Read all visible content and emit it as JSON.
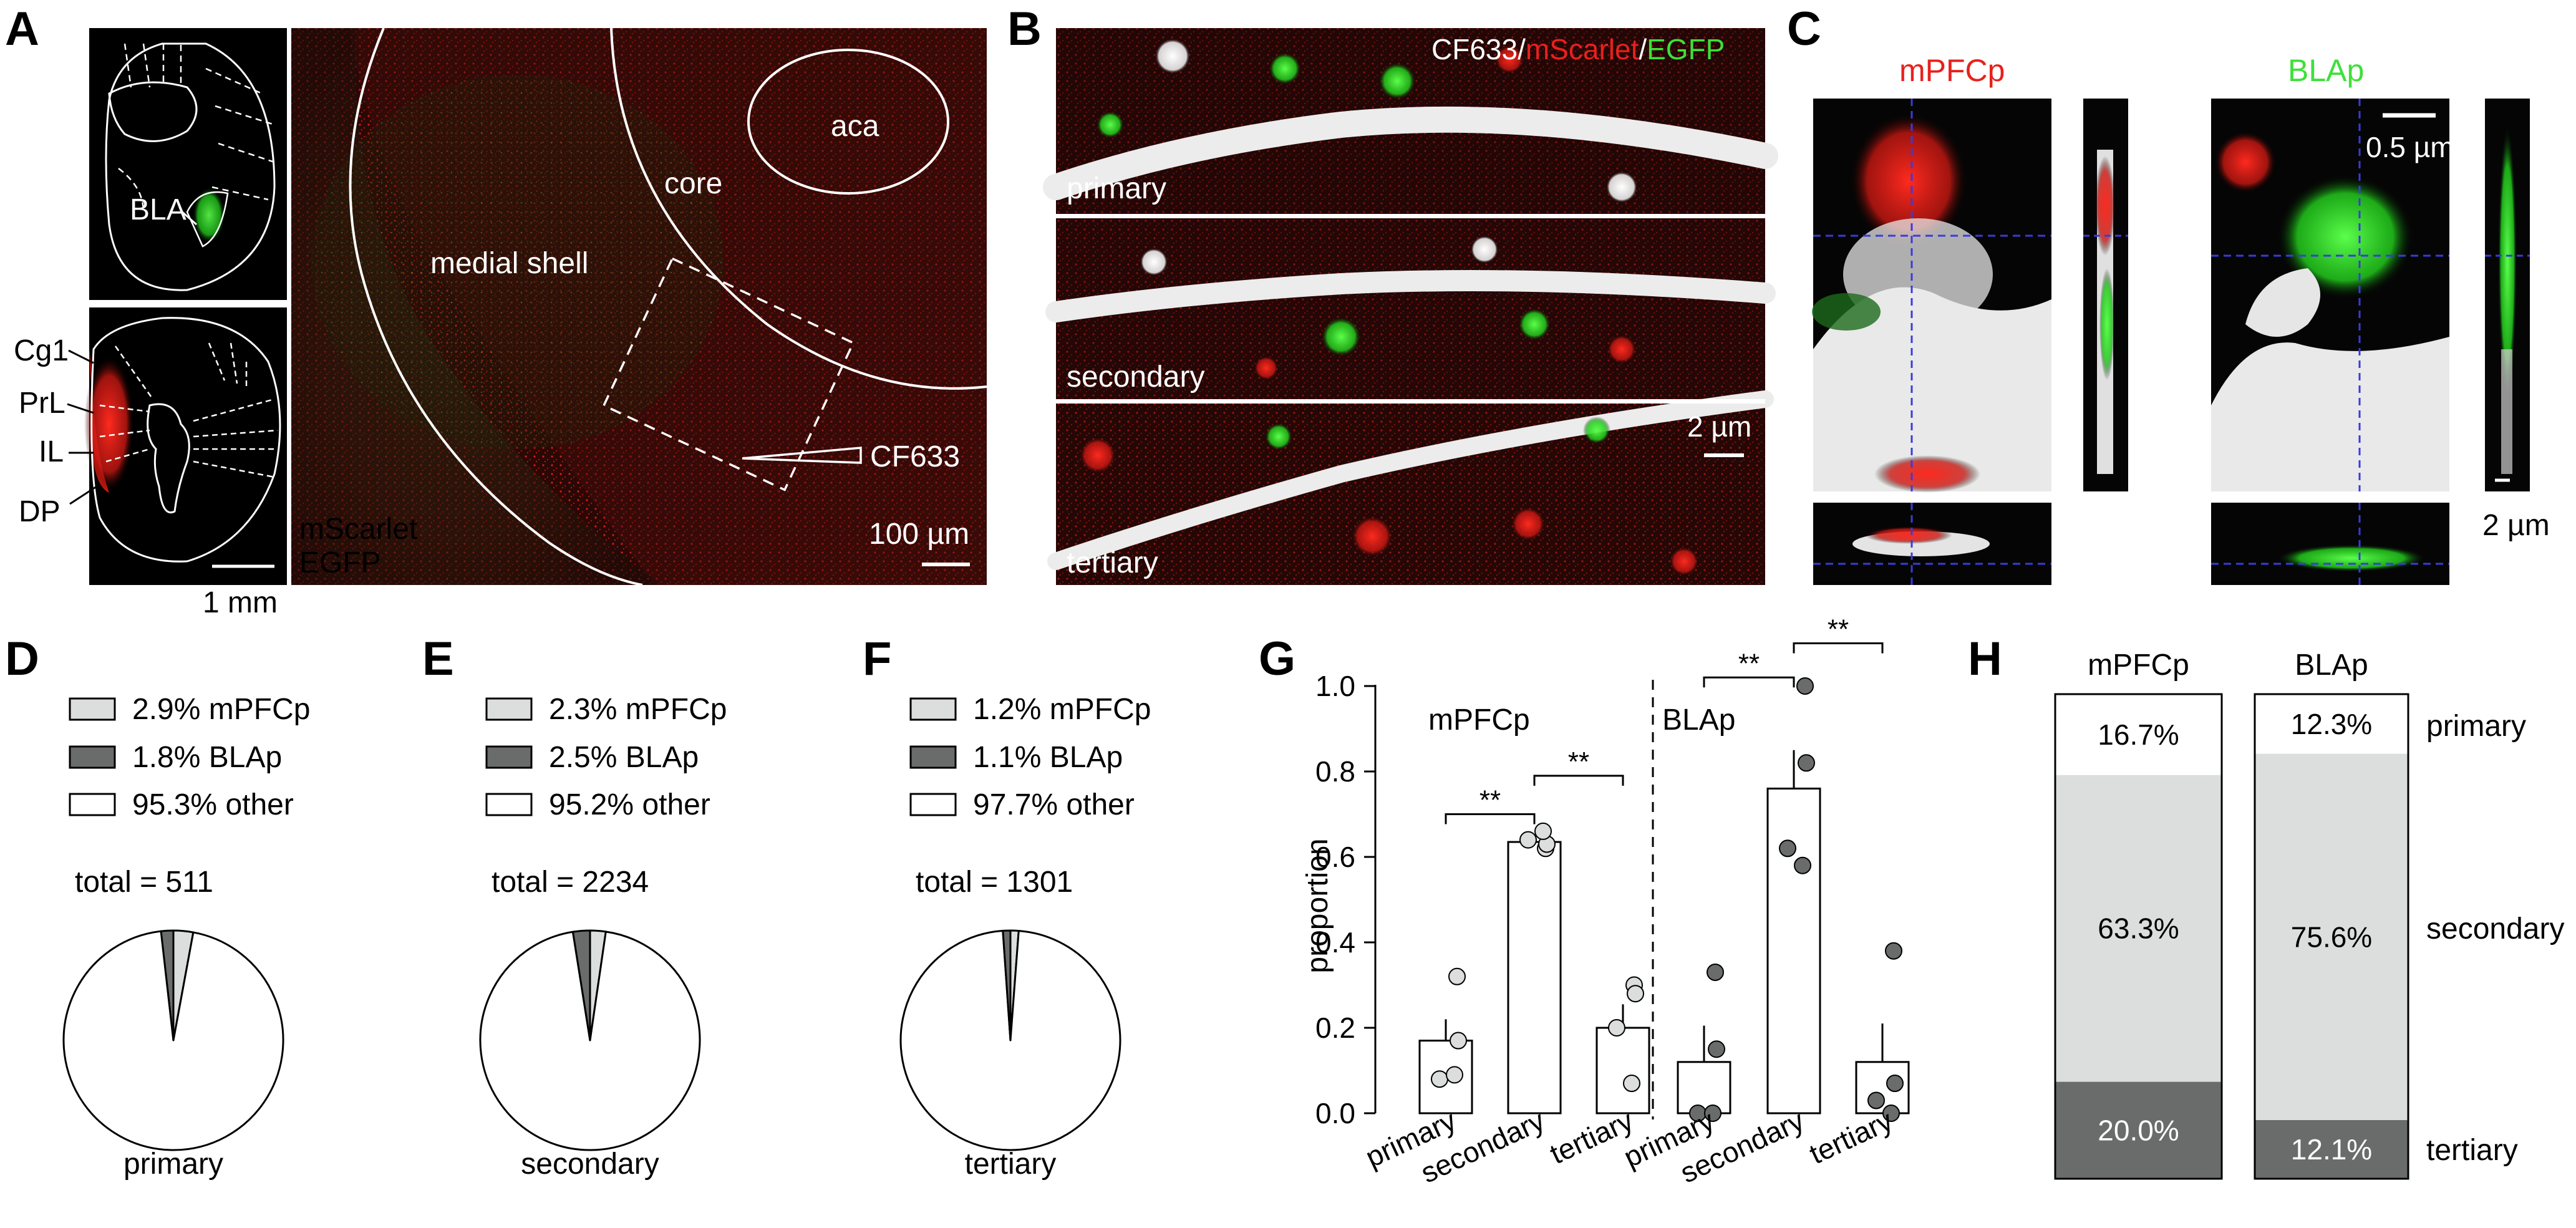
{
  "panels": {
    "A": {
      "letter": "A",
      "atlas_labels": [
        "BLA",
        "Cg1",
        "PrL",
        "IL",
        "DP"
      ],
      "atlas_scalebar": "1 mm",
      "region_labels": [
        "aca",
        "core",
        "medial shell",
        "CF633"
      ],
      "legend": [
        "mScarlet",
        "EGFP"
      ],
      "scalebar": "100 µm"
    },
    "B": {
      "letter": "B",
      "channels": [
        "CF633",
        "/",
        "mScarlet",
        "/",
        "EGFP"
      ],
      "rows": [
        "primary",
        "secondary",
        "tertiary"
      ],
      "scalebar": "2 µm"
    },
    "C": {
      "letter": "C",
      "titles": [
        "mPFCp",
        "BLAp"
      ],
      "scalebar_top": "0.5 µm",
      "scalebar_side": "2 µm"
    },
    "D": {
      "letter": "D"
    },
    "E": {
      "letter": "E"
    },
    "F": {
      "letter": "F"
    },
    "G": {
      "letter": "G"
    },
    "H": {
      "letter": "H"
    }
  },
  "colors": {
    "mPFCp": "#dcdedd",
    "BLAp": "#6a6c6b",
    "other": "#ffffff",
    "red_title": "#e8211c",
    "green_title": "#3ee03a",
    "crosshair": "#3a3adf"
  },
  "chart_data": [
    {
      "type": "pie",
      "panel": "D",
      "title": "primary",
      "total_label": "total = 511",
      "labels": [
        "2.9% mPFCp",
        "1.8% BLAp",
        "95.3% other"
      ],
      "categories": [
        "mPFCp",
        "BLAp",
        "other"
      ],
      "values": [
        2.9,
        1.8,
        95.3
      ]
    },
    {
      "type": "pie",
      "panel": "E",
      "title": "secondary",
      "total_label": "total = 2234",
      "labels": [
        "2.3% mPFCp",
        "2.5% BLAp",
        "95.2% other"
      ],
      "categories": [
        "mPFCp",
        "BLAp",
        "other"
      ],
      "values": [
        2.3,
        2.5,
        95.2
      ]
    },
    {
      "type": "pie",
      "panel": "F",
      "title": "tertiary",
      "total_label": "total = 1301",
      "labels": [
        "1.2% mPFCp",
        "1.1% BLAp",
        "97.7% other"
      ],
      "categories": [
        "mPFCp",
        "BLAp",
        "other"
      ],
      "values": [
        1.2,
        1.1,
        97.7
      ]
    },
    {
      "type": "bar",
      "panel": "G",
      "ylabel": "proportion",
      "ylim": [
        0,
        1.0
      ],
      "yticks": [
        "0.0",
        "0.2",
        "0.4",
        "0.6",
        "0.8",
        "1.0"
      ],
      "categories": [
        "primary",
        "secondary",
        "tertiary"
      ],
      "significance": "**",
      "groups": [
        {
          "name": "mPFCp",
          "means": [
            0.17,
            0.635,
            0.2
          ],
          "errors": [
            0.05,
            0.01,
            0.055
          ],
          "points": [
            [
              0.32,
              0.17,
              0.08,
              0.09
            ],
            [
              0.62,
              0.63,
              0.64,
              0.66
            ],
            [
              0.3,
              0.28,
              0.2,
              0.07
            ]
          ]
        },
        {
          "name": "BLAp",
          "means": [
            0.12,
            0.76,
            0.12
          ],
          "errors": [
            0.085,
            0.09,
            0.09
          ],
          "points": [
            [
              0.33,
              0.15,
              0.0,
              0.0
            ],
            [
              1.0,
              0.82,
              0.62,
              0.58
            ],
            [
              0.38,
              0.07,
              0.03,
              0.0
            ]
          ]
        }
      ]
    },
    {
      "type": "bar",
      "panel": "H",
      "stacked": true,
      "categories": [
        "mPFCp",
        "BLAp"
      ],
      "series": [
        {
          "name": "primary",
          "values": [
            16.7,
            12.3
          ],
          "labels": [
            "16.7%",
            "12.3%"
          ]
        },
        {
          "name": "secondary",
          "values": [
            63.3,
            75.6
          ],
          "labels": [
            "63.3%",
            "75.6%"
          ]
        },
        {
          "name": "tertiary",
          "values": [
            20.0,
            12.1
          ],
          "labels": [
            "20.0%",
            "12.1%"
          ]
        }
      ]
    }
  ]
}
